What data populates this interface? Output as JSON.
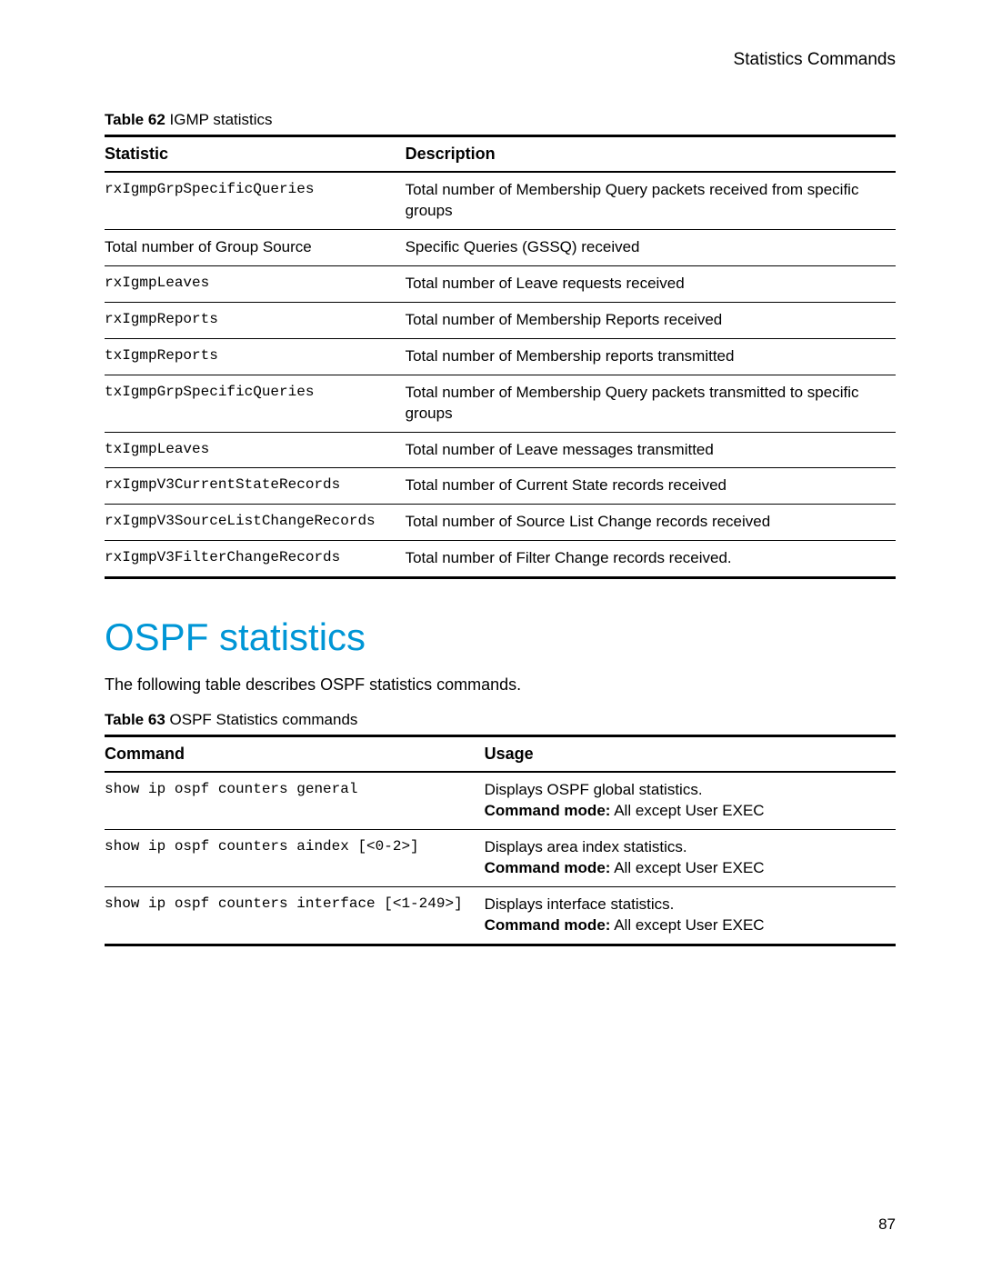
{
  "header": {
    "section_title": "Statistics Commands"
  },
  "table62": {
    "caption_label": "Table 62",
    "caption_text": "IGMP statistics",
    "columns": [
      "Statistic",
      "Description"
    ],
    "rows": [
      {
        "stat": "rxIgmpGrpSpecificQueries",
        "stat_mono": true,
        "desc": "Total number of Membership Query packets received from specific groups"
      },
      {
        "stat": "Total number of Group Source",
        "stat_mono": false,
        "desc": "Specific Queries (GSSQ) received"
      },
      {
        "stat": "rxIgmpLeaves",
        "stat_mono": true,
        "desc": "Total number of Leave requests received"
      },
      {
        "stat": "rxIgmpReports",
        "stat_mono": true,
        "desc": "Total number of Membership Reports received"
      },
      {
        "stat": "txIgmpReports",
        "stat_mono": true,
        "desc": "Total number of Membership reports transmitted"
      },
      {
        "stat": "txIgmpGrpSpecificQueries",
        "stat_mono": true,
        "desc": "Total number of Membership Query packets transmitted to specific groups"
      },
      {
        "stat": "txIgmpLeaves",
        "stat_mono": true,
        "desc": "Total number of Leave messages transmitted"
      },
      {
        "stat": "rxIgmpV3CurrentStateRecords",
        "stat_mono": true,
        "desc": "Total number of Current State records received"
      },
      {
        "stat": "rxIgmpV3SourceListChangeRecords",
        "stat_mono": true,
        "desc": "Total number of Source List Change records received"
      },
      {
        "stat": "rxIgmpV3FilterChangeRecords",
        "stat_mono": true,
        "desc": "Total number of Filter Change records received."
      }
    ]
  },
  "ospf_section": {
    "heading": "OSPF statistics",
    "intro": "The following table describes OSPF statistics commands."
  },
  "table63": {
    "caption_label": "Table 63",
    "caption_text": "OSPF Statistics commands",
    "columns": [
      "Command",
      "Usage"
    ],
    "cmd_mode_label": "Command mode:",
    "cmd_mode_value": "All except User EXEC",
    "rows": [
      {
        "cmd": "show ip ospf counters general",
        "usage": "Displays OSPF global statistics."
      },
      {
        "cmd": "show ip ospf counters aindex [<0-2>]",
        "usage": "Displays area index statistics."
      },
      {
        "cmd": "show ip ospf counters interface [<1-249>]",
        "usage": "Displays interface statistics."
      }
    ]
  },
  "page_number": "87",
  "colors": {
    "heading": "#0096d6",
    "text": "#000000",
    "background": "#ffffff"
  }
}
